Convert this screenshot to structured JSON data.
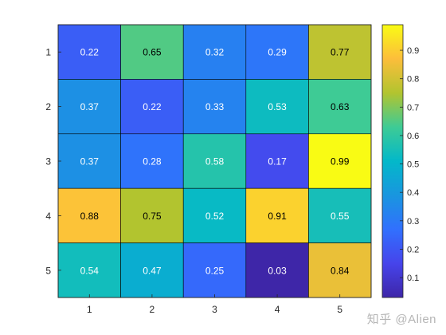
{
  "chart_data": {
    "type": "heatmap",
    "x_tick_labels": [
      "1",
      "2",
      "3",
      "4",
      "5"
    ],
    "y_tick_labels": [
      "1",
      "2",
      "3",
      "4",
      "5"
    ],
    "values": [
      [
        0.22,
        0.65,
        0.32,
        0.29,
        0.77
      ],
      [
        0.37,
        0.22,
        0.33,
        0.53,
        0.63
      ],
      [
        0.37,
        0.28,
        0.58,
        0.17,
        0.99
      ],
      [
        0.88,
        0.75,
        0.52,
        0.91,
        0.55
      ],
      [
        0.54,
        0.47,
        0.25,
        0.03,
        0.84
      ]
    ],
    "cell_labels": [
      [
        "0.22",
        "0.65",
        "0.32",
        "0.29",
        "0.77"
      ],
      [
        "0.37",
        "0.22",
        "0.33",
        "0.53",
        "0.63"
      ],
      [
        "0.37",
        "0.28",
        "0.58",
        "0.17",
        "0.99"
      ],
      [
        "0.88",
        "0.75",
        "0.52",
        "0.91",
        "0.55"
      ],
      [
        "0.54",
        "0.47",
        "0.25",
        "0.03",
        "0.84"
      ]
    ],
    "colormap": "parula",
    "color_limits": [
      0.03,
      0.99
    ],
    "colorbar": {
      "position": "right",
      "ticks": [
        0.1,
        0.2,
        0.3,
        0.4,
        0.5,
        0.6,
        0.7,
        0.8,
        0.9
      ],
      "tick_labels": [
        "0.1",
        "0.2",
        "0.3",
        "0.4",
        "0.5",
        "0.6",
        "0.7",
        "0.8",
        "0.9"
      ]
    },
    "grid": false,
    "title": "",
    "xlabel": "",
    "ylabel": ""
  },
  "watermark": "知乎 @Alien"
}
